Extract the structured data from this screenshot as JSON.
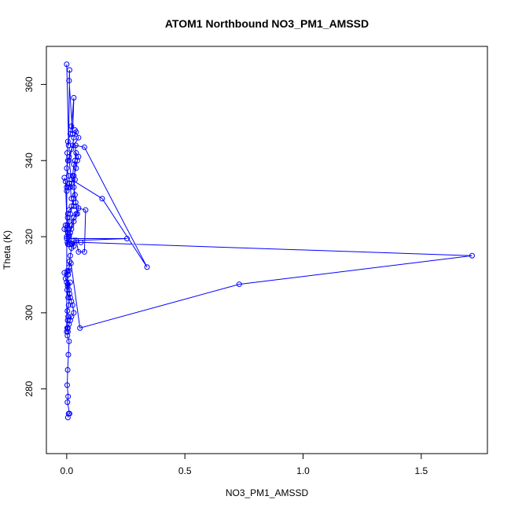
{
  "chart_data": {
    "type": "scatter",
    "title": "ATOM1 Northbound NO3_PM1_AMSSD",
    "xlabel": "NO3_PM1_AMSSD",
    "ylabel": "Theta (K)",
    "xlim": [
      -0.086,
      1.78
    ],
    "ylim": [
      263,
      370
    ],
    "x_ticks": [
      0,
      0.5,
      1,
      1.5
    ],
    "x_tick_labels": [
      "0.0",
      "0.5",
      "1.0",
      "1.5"
    ],
    "y_ticks": [
      280,
      300,
      320,
      340,
      360
    ],
    "y_tick_labels": [
      "280",
      "300",
      "320",
      "340",
      "360"
    ],
    "grid": false,
    "legend": "none",
    "line_color": "#0000ff",
    "point_color": "#0000ff",
    "series": [
      {
        "x": [
          0.005,
          0.008,
          0.012,
          0.003,
          0.006,
          0.002,
          0.004,
          0.007,
          0.01,
          0.003,
          0.005,
          0.002,
          0.004,
          0.006,
          0.003,
          0.008,
          0.012,
          0.006,
          0.004,
          0.015,
          0.002,
          0.005,
          0.003,
          0.018,
          0.056,
          0.73,
          1.715,
          0.06,
          0.02,
          0.012,
          0.008,
          0.005,
          0.01,
          0.015,
          0.02,
          0.03,
          0.038,
          0.075,
          0.34,
          0.15,
          0.02,
          0.01,
          0.025,
          0.03,
          0.04,
          0.035,
          0.05,
          0.02,
          0.01,
          0.005,
          0.0,
          0.008,
          0.012,
          0.015,
          0.02,
          0.03,
          0.01,
          0.005,
          0.004,
          0.003,
          -0.005,
          -0.01,
          0.0,
          0.005,
          0.01,
          0.02,
          0.03,
          0.04,
          0.05,
          0.075,
          0.08,
          0.05,
          0.04,
          0.03,
          0.03,
          0.02,
          0.01,
          0.0,
          0.255,
          0.03,
          0.02,
          0.015,
          0.012,
          0.01,
          0.008,
          0.006,
          -0.01,
          -0.005,
          0.0,
          0.005,
          0.01,
          0.015,
          0.02,
          0.025,
          0.03,
          0.02,
          0.015,
          0.01,
          0.005,
          0.0,
          0.0,
          0.01,
          0.02,
          0.03,
          0.04,
          0.045,
          0.05,
          0.04,
          0.035,
          0.03,
          0.025,
          0.035,
          0.03,
          0.035,
          0.038,
          0.04,
          0.045,
          0.03,
          0.02,
          0.015,
          0.01,
          0.005,
          0.003,
          -0.005,
          -0.01,
          0.0,
          0.002,
          0.005,
          0.015,
          0.02,
          0.03,
          0.025,
          0.01,
          0.012,
          0.008,
          0.0
        ],
        "y": [
          272.5,
          273.5,
          273.5,
          276.5,
          278.0,
          281.0,
          285.0,
          289.0,
          292.5,
          294.0,
          295.0,
          296.0,
          298.0,
          299.0,
          300.5,
          302.0,
          305.0,
          304.0,
          307.0,
          308.0,
          306.0,
          310.0,
          311.0,
          313.0,
          296.0,
          307.5,
          315.0,
          318.5,
          318.2,
          318.0,
          320.0,
          322.0,
          324.0,
          326.0,
          328.0,
          330.0,
          344.0,
          343.5,
          312.0,
          330.0,
          335.0,
          340.0,
          344.0,
          346.0,
          347.5,
          348.0,
          346.0,
          343.0,
          341.0,
          340.0,
          338.0,
          336.0,
          334.0,
          333.0,
          330.0,
          328.0,
          327.0,
          326.0,
          325.0,
          323.0,
          323.0,
          322.0,
          320.0,
          321.0,
          320.0,
          318.0,
          317.5,
          319.0,
          316.0,
          316.0,
          327.0,
          327.5,
          326.0,
          325.0,
          324.0,
          322.0,
          320.5,
          319.5,
          319.5,
          319.0,
          317.0,
          315.0,
          313.5,
          312.0,
          311.0,
          310.0,
          310.5,
          309.0,
          308.0,
          307.5,
          306.0,
          304.0,
          303.0,
          302.0,
          300.0,
          299.0,
          298.0,
          297.0,
          296.0,
          295.0,
          332.0,
          333.0,
          334.0,
          336.0,
          338.0,
          340.0,
          341.0,
          342.0,
          340.0,
          339.0,
          336.0,
          335.0,
          333.0,
          331.0,
          329.0,
          328.0,
          326.0,
          325.0,
          323.0,
          321.0,
          320.0,
          318.0,
          318.5,
          334.5,
          335.5,
          333.0,
          342.0,
          345.0,
          347.0,
          349.0,
          356.5,
          347.0,
          361.0,
          363.8,
          344.0,
          365.3
        ]
      }
    ]
  }
}
